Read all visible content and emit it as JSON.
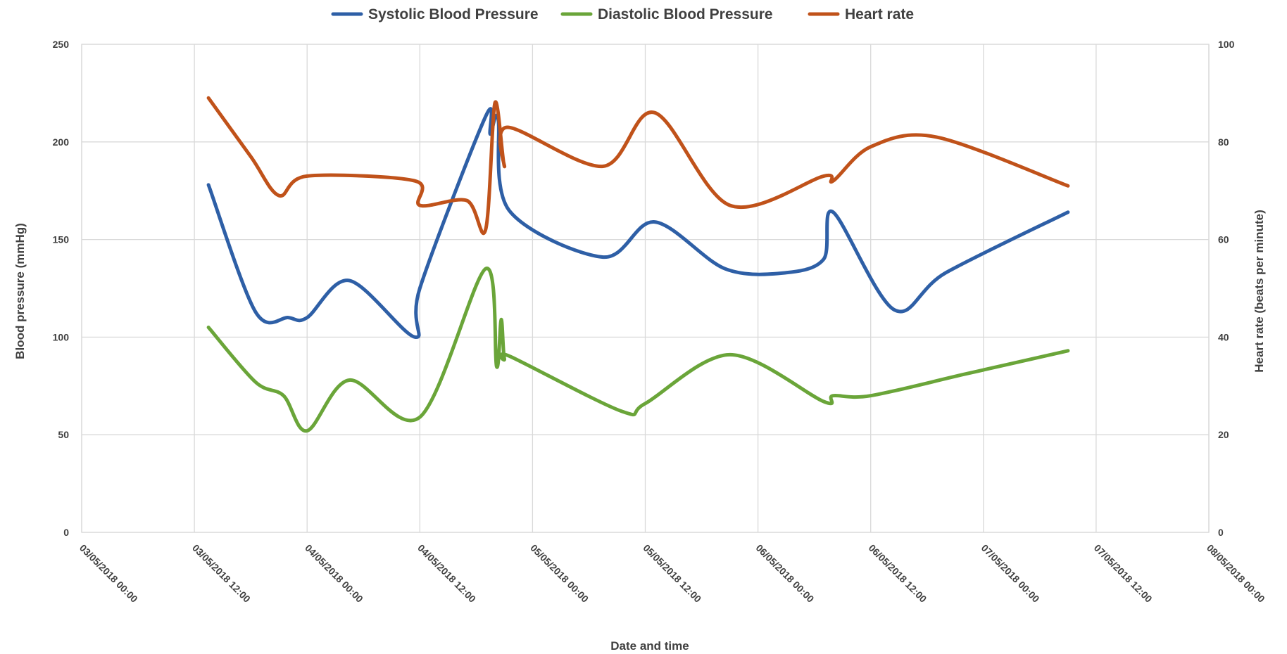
{
  "chart_data": {
    "type": "line",
    "xlabel": "Date and time",
    "ylabel": "Blood pressure (mmHg)",
    "y2label": "Heart rate (beats per minute)",
    "ylim": [
      0,
      250
    ],
    "y2lim": [
      0,
      100
    ],
    "yticks": [
      0,
      50,
      100,
      150,
      200,
      250
    ],
    "y2ticks": [
      0,
      20,
      40,
      60,
      80,
      100
    ],
    "xlim": [
      "2018-05-03T00:00",
      "2018-05-08T00:00"
    ],
    "xticks": [
      {
        "t": "2018-05-03T00:00",
        "label": "03/05/2018 00:00"
      },
      {
        "t": "2018-05-03T12:00",
        "label": "03/05/2018 12:00"
      },
      {
        "t": "2018-05-04T00:00",
        "label": "04/05/2018 00:00"
      },
      {
        "t": "2018-05-04T12:00",
        "label": "04/05/2018 12:00"
      },
      {
        "t": "2018-05-05T00:00",
        "label": "05/05/2018 00:00"
      },
      {
        "t": "2018-05-05T12:00",
        "label": "05/05/2018 12:00"
      },
      {
        "t": "2018-05-06T00:00",
        "label": "06/05/2018 00:00"
      },
      {
        "t": "2018-05-06T12:00",
        "label": "06/05/2018 12:00"
      },
      {
        "t": "2018-05-07T00:00",
        "label": "07/05/2018 00:00"
      },
      {
        "t": "2018-05-07T12:00",
        "label": "07/05/2018 12:00"
      },
      {
        "t": "2018-05-08T00:00",
        "label": "08/05/2018 00:00"
      }
    ],
    "grid": true,
    "legend_position": "top",
    "series": [
      {
        "name": "Systolic Blood Pressure",
        "axis": "left",
        "color": "#2e5fa6",
        "points": [
          {
            "t": "2018-05-03T13:30",
            "v": 178
          },
          {
            "t": "2018-05-03T18:30",
            "v": 113
          },
          {
            "t": "2018-05-03T22:00",
            "v": 110
          },
          {
            "t": "2018-05-04T00:00",
            "v": 110
          },
          {
            "t": "2018-05-04T04:30",
            "v": 129
          },
          {
            "t": "2018-05-04T11:30",
            "v": 100
          },
          {
            "t": "2018-05-04T12:00",
            "v": 125
          },
          {
            "t": "2018-05-04T19:00",
            "v": 213
          },
          {
            "t": "2018-05-04T19:30",
            "v": 204
          },
          {
            "t": "2018-05-04T20:20",
            "v": 212
          },
          {
            "t": "2018-05-04T21:30",
            "v": 165
          },
          {
            "t": "2018-05-05T07:30",
            "v": 141
          },
          {
            "t": "2018-05-05T13:00",
            "v": 159
          },
          {
            "t": "2018-05-05T20:30",
            "v": 135
          },
          {
            "t": "2018-05-06T03:00",
            "v": 133
          },
          {
            "t": "2018-05-06T07:00",
            "v": 140
          },
          {
            "t": "2018-05-06T08:00",
            "v": 164
          },
          {
            "t": "2018-05-06T14:30",
            "v": 114
          },
          {
            "t": "2018-05-06T20:00",
            "v": 133
          },
          {
            "t": "2018-05-07T09:00",
            "v": 164
          }
        ]
      },
      {
        "name": "Diastolic Blood Pressure",
        "axis": "left",
        "color": "#6aa539",
        "points": [
          {
            "t": "2018-05-03T13:30",
            "v": 105
          },
          {
            "t": "2018-05-03T18:30",
            "v": 77
          },
          {
            "t": "2018-05-03T21:30",
            "v": 70
          },
          {
            "t": "2018-05-04T00:00",
            "v": 52
          },
          {
            "t": "2018-05-04T04:30",
            "v": 78
          },
          {
            "t": "2018-05-04T12:00",
            "v": 59
          },
          {
            "t": "2018-05-04T19:00",
            "v": 135
          },
          {
            "t": "2018-05-04T20:10",
            "v": 85
          },
          {
            "t": "2018-05-04T20:40",
            "v": 109
          },
          {
            "t": "2018-05-04T21:00",
            "v": 89
          },
          {
            "t": "2018-05-04T21:40",
            "v": 90
          },
          {
            "t": "2018-05-05T09:30",
            "v": 62
          },
          {
            "t": "2018-05-05T12:00",
            "v": 66
          },
          {
            "t": "2018-05-05T21:00",
            "v": 91
          },
          {
            "t": "2018-05-06T07:00",
            "v": 67
          },
          {
            "t": "2018-05-06T08:00",
            "v": 70
          },
          {
            "t": "2018-05-06T12:00",
            "v": 70
          },
          {
            "t": "2018-05-06T22:00",
            "v": 81
          },
          {
            "t": "2018-05-07T09:00",
            "v": 93
          }
        ]
      },
      {
        "name": "Heart rate",
        "axis": "right",
        "color": "#c0521a",
        "points": [
          {
            "t": "2018-05-03T13:30",
            "v": 89
          },
          {
            "t": "2018-05-03T18:00",
            "v": 77
          },
          {
            "t": "2018-05-03T21:00",
            "v": 69
          },
          {
            "t": "2018-05-04T00:00",
            "v": 73
          },
          {
            "t": "2018-05-04T11:30",
            "v": 72
          },
          {
            "t": "2018-05-04T12:00",
            "v": 67
          },
          {
            "t": "2018-05-04T17:00",
            "v": 68
          },
          {
            "t": "2018-05-04T19:00",
            "v": 62
          },
          {
            "t": "2018-05-04T20:00",
            "v": 88
          },
          {
            "t": "2018-05-04T21:00",
            "v": 75
          },
          {
            "t": "2018-05-04T21:20",
            "v": 83
          },
          {
            "t": "2018-05-05T07:30",
            "v": 75
          },
          {
            "t": "2018-05-05T13:00",
            "v": 86
          },
          {
            "t": "2018-05-05T21:00",
            "v": 67
          },
          {
            "t": "2018-05-06T07:00",
            "v": 73
          },
          {
            "t": "2018-05-06T08:00",
            "v": 72
          },
          {
            "t": "2018-05-06T12:00",
            "v": 79
          },
          {
            "t": "2018-05-06T19:00",
            "v": 81
          },
          {
            "t": "2018-05-07T09:00",
            "v": 71
          }
        ]
      }
    ]
  }
}
